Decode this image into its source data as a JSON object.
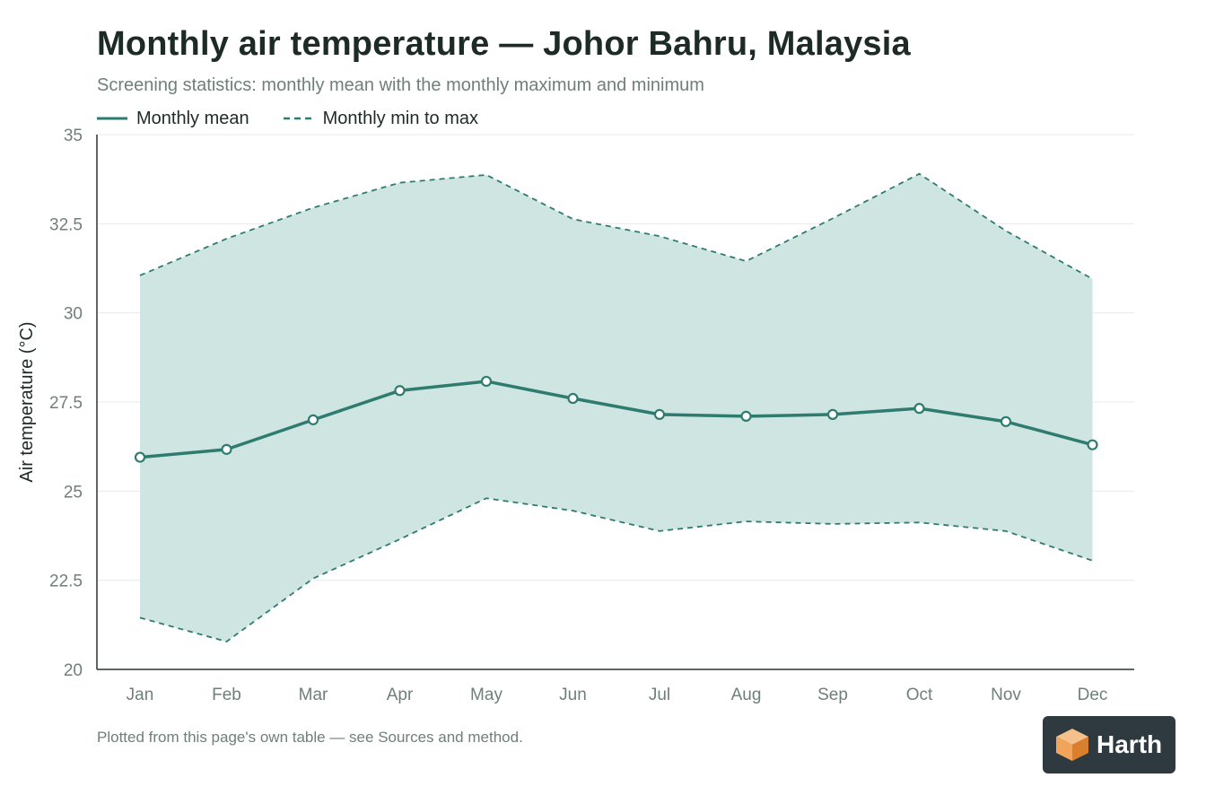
{
  "title": "Monthly air temperature — Johor Bahru, Malaysia",
  "subtitle": "Screening statistics: monthly mean with the monthly maximum and minimum",
  "legend": {
    "mean_label": "Monthly mean",
    "range_label": "Monthly min to max"
  },
  "footnote": "Plotted from this page's own table — see Sources and method.",
  "logo": {
    "text": "Harth",
    "icon": "cube-icon"
  },
  "colors": {
    "line": "#2e7b70",
    "band_fill": "#cfe5e1",
    "axis": "#2b3330",
    "grid": "#e6ebea",
    "tick_text": "#6f7f7a",
    "logo_bg": "#2f3a40",
    "logo_accent": "#f2a45a"
  },
  "chart_data": {
    "type": "line",
    "categories": [
      "Jan",
      "Feb",
      "Mar",
      "Apr",
      "May",
      "Jun",
      "Jul",
      "Aug",
      "Sep",
      "Oct",
      "Nov",
      "Dec"
    ],
    "series": [
      {
        "name": "Monthly mean",
        "values": [
          25.95,
          26.17,
          27.0,
          27.82,
          28.08,
          27.6,
          27.15,
          27.1,
          27.15,
          27.32,
          26.95,
          26.3
        ]
      },
      {
        "name": "Monthly min to max",
        "style": "dashed-band",
        "max": [
          31.05,
          32.08,
          32.95,
          33.65,
          33.87,
          32.63,
          32.15,
          31.45,
          32.65,
          33.9,
          32.3,
          30.95
        ],
        "min": [
          21.45,
          20.78,
          22.55,
          23.65,
          24.8,
          24.45,
          23.88,
          24.15,
          24.08,
          24.12,
          23.88,
          23.05
        ]
      }
    ],
    "xlabel": "",
    "ylabel": "Air temperature (°C)",
    "ylim": [
      20,
      35
    ],
    "yticks": [
      20,
      22.5,
      25,
      27.5,
      30,
      32.5,
      35
    ],
    "ytick_labels": [
      "20",
      "22.5",
      "25",
      "27.5",
      "30",
      "32.5",
      "35"
    ],
    "grid": true,
    "legend_position": "top-left"
  }
}
